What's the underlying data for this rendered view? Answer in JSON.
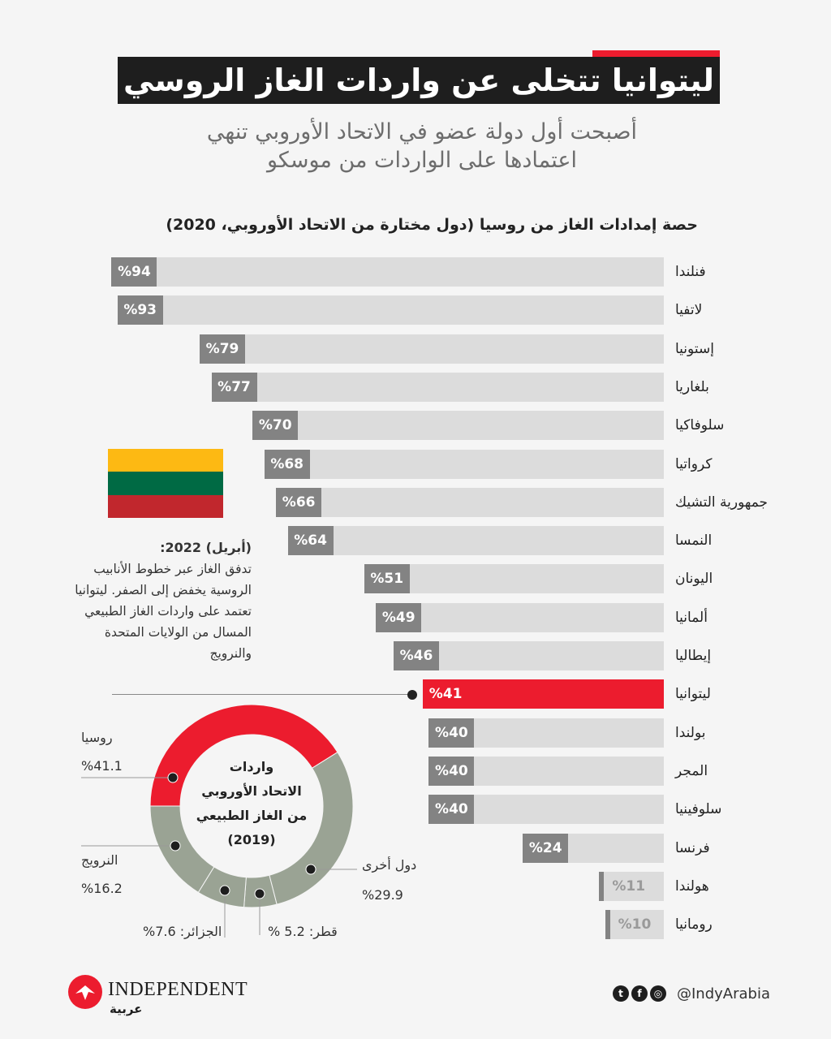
{
  "title": "ليتوانيا تتخلى عن واردات الغاز الروسي",
  "subtitle_line1": "أصبحت أول دولة عضو في الاتحاد الأوروبي تنهي",
  "subtitle_line2": "اعتمادها على الواردات من موسكو",
  "colors": {
    "accent": "#ec1c2e",
    "bar_bg": "#dcdcdc",
    "value_box": "#838383",
    "donut_other": "#9aa394"
  },
  "chart_data": [
    {
      "type": "bar",
      "orientation": "horizontal",
      "title": "حصة إمدادات الغاز من روسيا (دول مختارة من الاتحاد الأوروبي، 2020)",
      "unit": "%",
      "xlim": [
        0,
        100
      ],
      "highlight": "ليتوانيا",
      "categories": [
        "فنلندا",
        "لاتفيا",
        "إستونيا",
        "بلغاريا",
        "سلوفاكيا",
        "كرواتيا",
        "جمهورية التشيك",
        "النمسا",
        "اليونان",
        "ألمانيا",
        "إيطاليا",
        "ليتوانيا",
        "بولندا",
        "المجر",
        "سلوفينيا",
        "فرنسا",
        "هولندا",
        "رومانيا"
      ],
      "values": [
        94,
        93,
        79,
        77,
        70,
        68,
        66,
        64,
        51,
        49,
        46,
        41,
        40,
        40,
        40,
        24,
        11,
        10
      ],
      "labels": [
        "%94",
        "%93",
        "%79",
        "%77",
        "%70",
        "%68",
        "%66",
        "%64",
        "%51",
        "%49",
        "%46",
        "%41",
        "%40",
        "%40",
        "%40",
        "%24",
        "%11",
        "%10"
      ]
    },
    {
      "type": "pie",
      "donut": true,
      "title": "واردات الاتحاد الأوروبي من الغاز الطبيعي (2019)",
      "title_lines": [
        "واردات",
        "الاتحاد الأوروبي",
        "من الغاز الطبيعي",
        "(2019)"
      ],
      "categories": [
        "روسيا",
        "دول أخرى",
        "قطر",
        "الجزائر",
        "النرويج"
      ],
      "values": [
        41.1,
        29.9,
        5.2,
        7.6,
        16.2
      ],
      "labels": [
        "%41.1",
        "%29.9",
        "قطر: 5.2 %",
        "الجزائر: 7.6%",
        "%16.2"
      ]
    }
  ],
  "note": {
    "heading": "(أبريل) 2022:",
    "body": "تدفق الغاز عبر خطوط الأنابيب الروسية يخفض إلى الصفر. ليتوانيا تعتمد على واردات الغاز الطبيعي المسال من الولايات المتحدة والنرويج"
  },
  "flag": {
    "colors": [
      "#fdb913",
      "#006a44",
      "#c1272d"
    ]
  },
  "footer": {
    "logo_text": "INDEPENDENT",
    "logo_sub": "عربية",
    "handle": "@IndyArabia",
    "social_icons": [
      "twitter-icon",
      "facebook-icon",
      "instagram-icon"
    ]
  }
}
